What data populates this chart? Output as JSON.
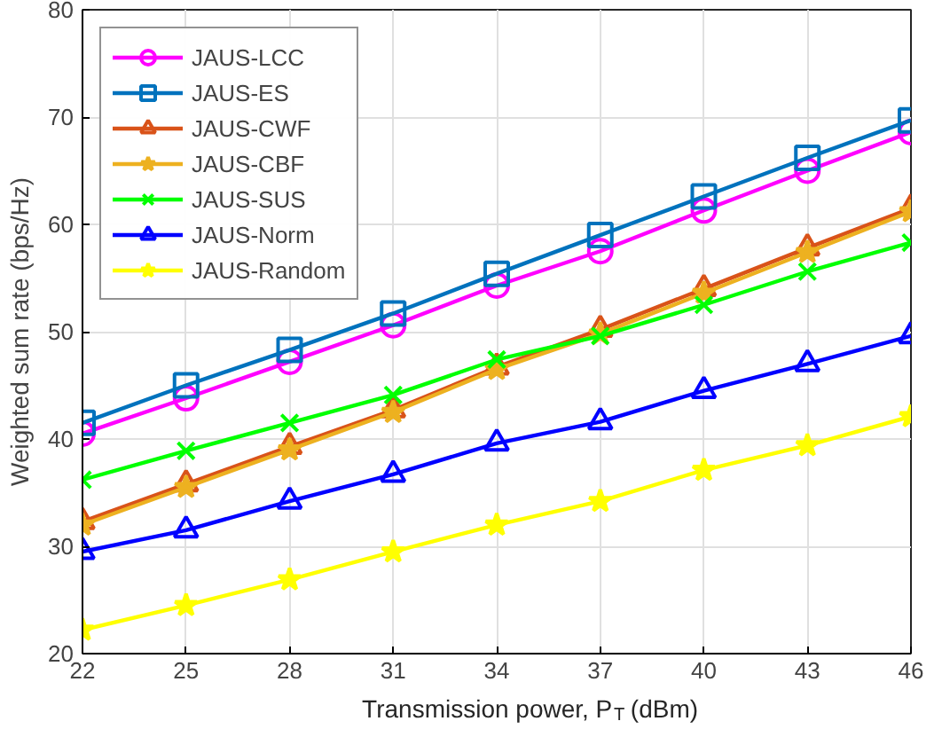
{
  "chart_data": {
    "type": "line",
    "xlabel": "Transmission power, P$_{T}$ (dBm)",
    "ylabel": "Weighted sum rate (bps/Hz)",
    "x": [
      22,
      25,
      28,
      31,
      34,
      37,
      40,
      43,
      46
    ],
    "series": [
      {
        "name": "JAUS-LCC",
        "color": "#ff00ff",
        "marker": "circle",
        "values": [
          40.5,
          43.8,
          47.2,
          50.6,
          54.3,
          57.5,
          61.3,
          65,
          68.6
        ]
      },
      {
        "name": "JAUS-ES",
        "color": "#0072bd",
        "marker": "square",
        "values": [
          41.5,
          45,
          48.3,
          51.7,
          55.4,
          59,
          62.6,
          66.2,
          69.7
        ]
      },
      {
        "name": "JAUS-CWF",
        "color": "#d95319",
        "marker": "triangle",
        "values": [
          32.3,
          35.8,
          39.3,
          42.7,
          46.7,
          50.2,
          54,
          57.8,
          61.5
        ]
      },
      {
        "name": "JAUS-CBF",
        "color": "#edb120",
        "marker": "star",
        "values": [
          32,
          35.5,
          39,
          42.5,
          46.5,
          49.8,
          53.6,
          57.4,
          61.2
        ]
      },
      {
        "name": "JAUS-SUS",
        "color": "#00ff00",
        "marker": "cross",
        "values": [
          36.2,
          38.9,
          41.5,
          44.1,
          47.4,
          49.6,
          52.5,
          55.6,
          58.3
        ]
      },
      {
        "name": "JAUS-Norm",
        "color": "#0000ff",
        "marker": "triangle",
        "values": [
          29.5,
          31.5,
          34.2,
          36.7,
          39.6,
          41.6,
          44.5,
          47,
          49.6
        ]
      },
      {
        "name": "JAUS-Random",
        "color": "#ffff00",
        "marker": "star",
        "values": [
          22.2,
          24.5,
          26.9,
          29.5,
          32,
          34.2,
          37.1,
          39.4,
          42.1
        ]
      }
    ],
    "xlim": [
      22,
      46
    ],
    "xticks": [
      22,
      25,
      28,
      31,
      34,
      37,
      40,
      43,
      46
    ],
    "ylim": [
      20,
      80
    ],
    "yticks": [
      20,
      30,
      40,
      50,
      60,
      70,
      80
    ],
    "grid": true,
    "legend": "top left",
    "line_style": "solid"
  }
}
